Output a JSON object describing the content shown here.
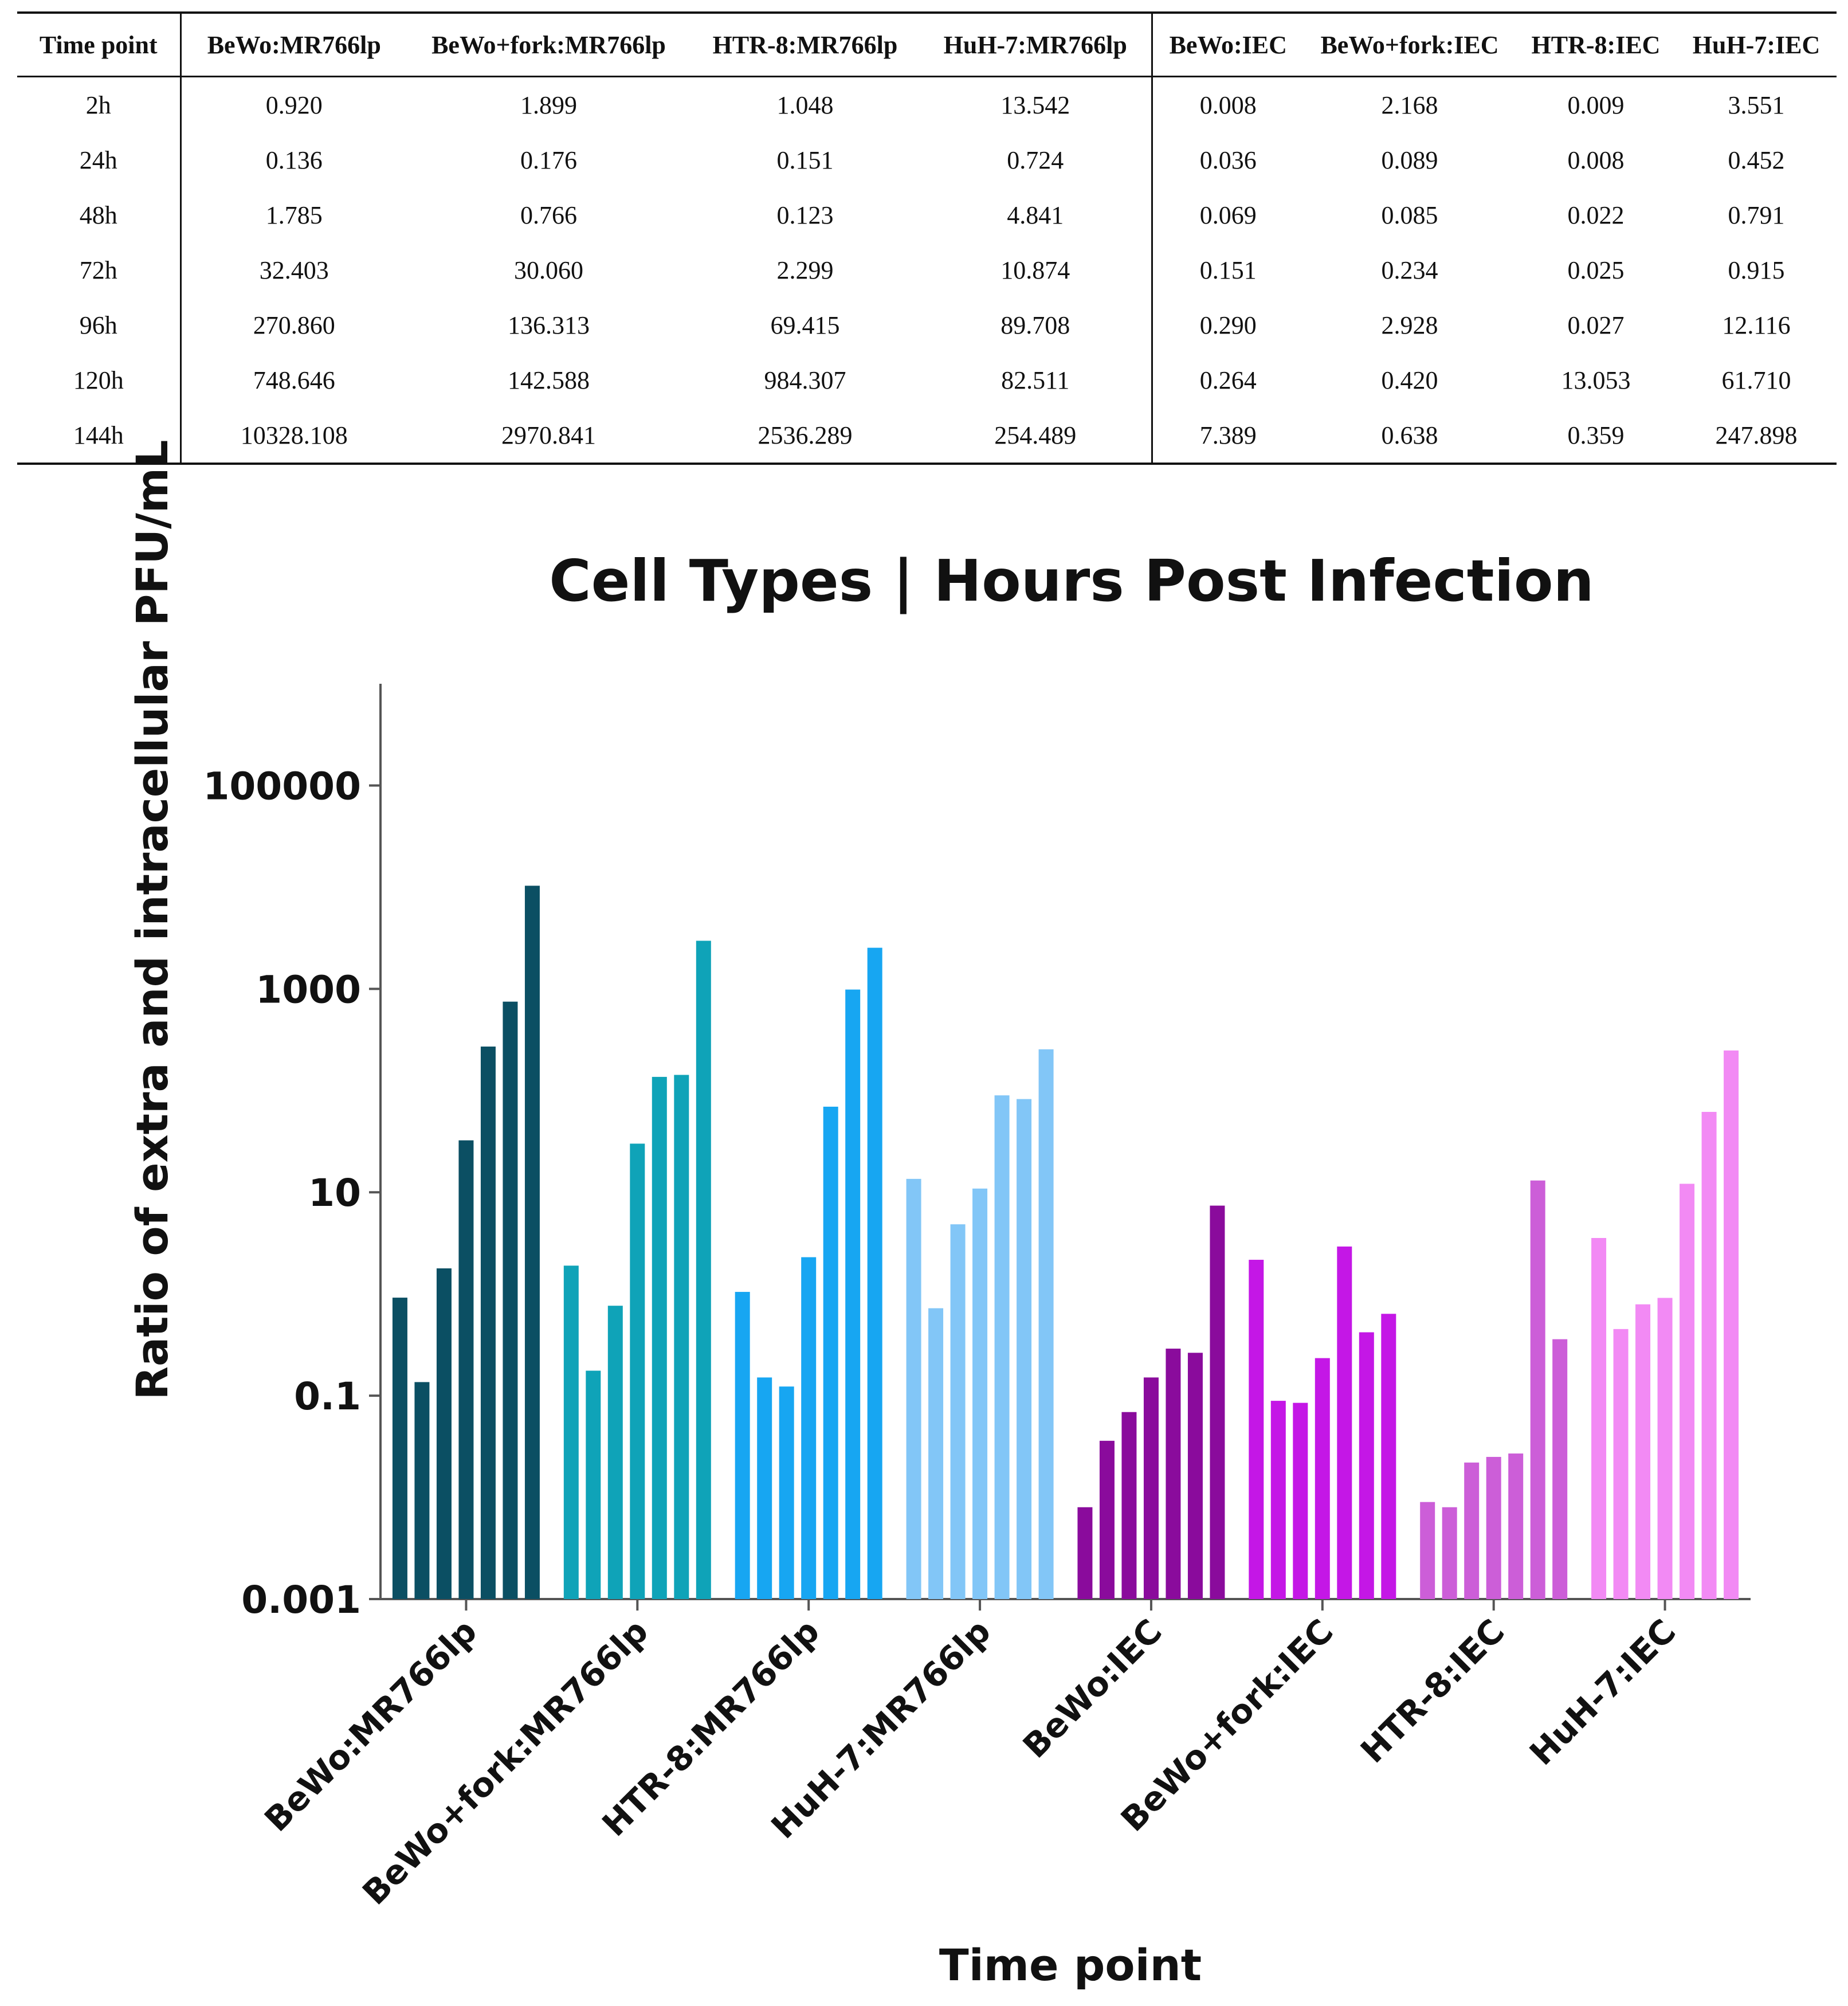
{
  "table": {
    "headers": [
      "Time point",
      "BeWo:MR766lp",
      "BeWo+fork:MR766lp",
      "HTR-8:MR766lp",
      "HuH-7:MR766lp",
      "BeWo:IEC",
      "BeWo+fork:IEC",
      "HTR-8:IEC",
      "HuH-7:IEC"
    ],
    "rows": [
      [
        "2h",
        "0.920",
        "1.899",
        "1.048",
        "13.542",
        "0.008",
        "2.168",
        "0.009",
        "3.551"
      ],
      [
        "24h",
        "0.136",
        "0.176",
        "0.151",
        "0.724",
        "0.036",
        "0.089",
        "0.008",
        "0.452"
      ],
      [
        "48h",
        "1.785",
        "0.766",
        "0.123",
        "4.841",
        "0.069",
        "0.085",
        "0.022",
        "0.791"
      ],
      [
        "72h",
        "32.403",
        "30.060",
        "2.299",
        "10.874",
        "0.151",
        "0.234",
        "0.025",
        "0.915"
      ],
      [
        "96h",
        "270.860",
        "136.313",
        "69.415",
        "89.708",
        "0.290",
        "2.928",
        "0.027",
        "12.116"
      ],
      [
        "120h",
        "748.646",
        "142.588",
        "984.307",
        "82.511",
        "0.264",
        "0.420",
        "13.053",
        "61.710"
      ],
      [
        "144h",
        "10328.108",
        "2970.841",
        "2536.289",
        "254.489",
        "7.389",
        "0.638",
        "0.359",
        "247.898"
      ]
    ]
  },
  "chart_data": {
    "type": "bar",
    "title": "Cell Types | Hours Post Infection",
    "xlabel": "Time point",
    "ylabel": "Ratio of extra and intracellular PFU/mL",
    "yscale": "log",
    "ylim": [
      0.001,
      1000000
    ],
    "yticks": [
      0.001,
      0.1,
      10,
      1000,
      100000
    ],
    "ytick_labels": [
      "0.001",
      "0.1",
      "10",
      "1000",
      "100000"
    ],
    "time_points": [
      "2h",
      "24h",
      "48h",
      "72h",
      "96h",
      "120h",
      "144h"
    ],
    "categories": [
      "BeWo:MR766lp",
      "BeWo+fork:MR766lp",
      "HTR-8:MR766lp",
      "HuH-7:MR766lp",
      "BeWo:IEC",
      "BeWo+fork:IEC",
      "HTR-8:IEC",
      "HuH-7:IEC"
    ],
    "groups": [
      {
        "name": "BeWo:MR766lp",
        "color": "#0b4f63",
        "values": [
          0.92,
          0.136,
          1.785,
          32.403,
          270.86,
          748.646,
          10328.108
        ]
      },
      {
        "name": "BeWo+fork:MR766lp",
        "color": "#0fa3b8",
        "values": [
          1.899,
          0.176,
          0.766,
          30.06,
          136.313,
          142.588,
          2970.841
        ]
      },
      {
        "name": "HTR-8:MR766lp",
        "color": "#17a6f2",
        "values": [
          1.048,
          0.151,
          0.123,
          2.299,
          69.415,
          984.307,
          2536.289
        ]
      },
      {
        "name": "HuH-7:MR766lp",
        "color": "#82c6f7",
        "values": [
          13.542,
          0.724,
          4.841,
          10.874,
          89.708,
          82.511,
          254.489
        ]
      },
      {
        "name": "BeWo:IEC",
        "color": "#8a0b9c",
        "values": [
          0.008,
          0.036,
          0.069,
          0.151,
          0.29,
          0.264,
          7.389
        ]
      },
      {
        "name": "BeWo+fork:IEC",
        "color": "#c417e6",
        "values": [
          2.168,
          0.089,
          0.085,
          0.234,
          2.928,
          0.42,
          0.638
        ]
      },
      {
        "name": "HTR-8:IEC",
        "color": "#cc5ed8",
        "values": [
          0.009,
          0.008,
          0.022,
          0.025,
          0.027,
          13.053,
          0.359
        ]
      },
      {
        "name": "HuH-7:IEC",
        "color": "#f28af4",
        "values": [
          3.551,
          0.452,
          0.791,
          0.915,
          12.116,
          61.71,
          247.898
        ]
      }
    ]
  }
}
